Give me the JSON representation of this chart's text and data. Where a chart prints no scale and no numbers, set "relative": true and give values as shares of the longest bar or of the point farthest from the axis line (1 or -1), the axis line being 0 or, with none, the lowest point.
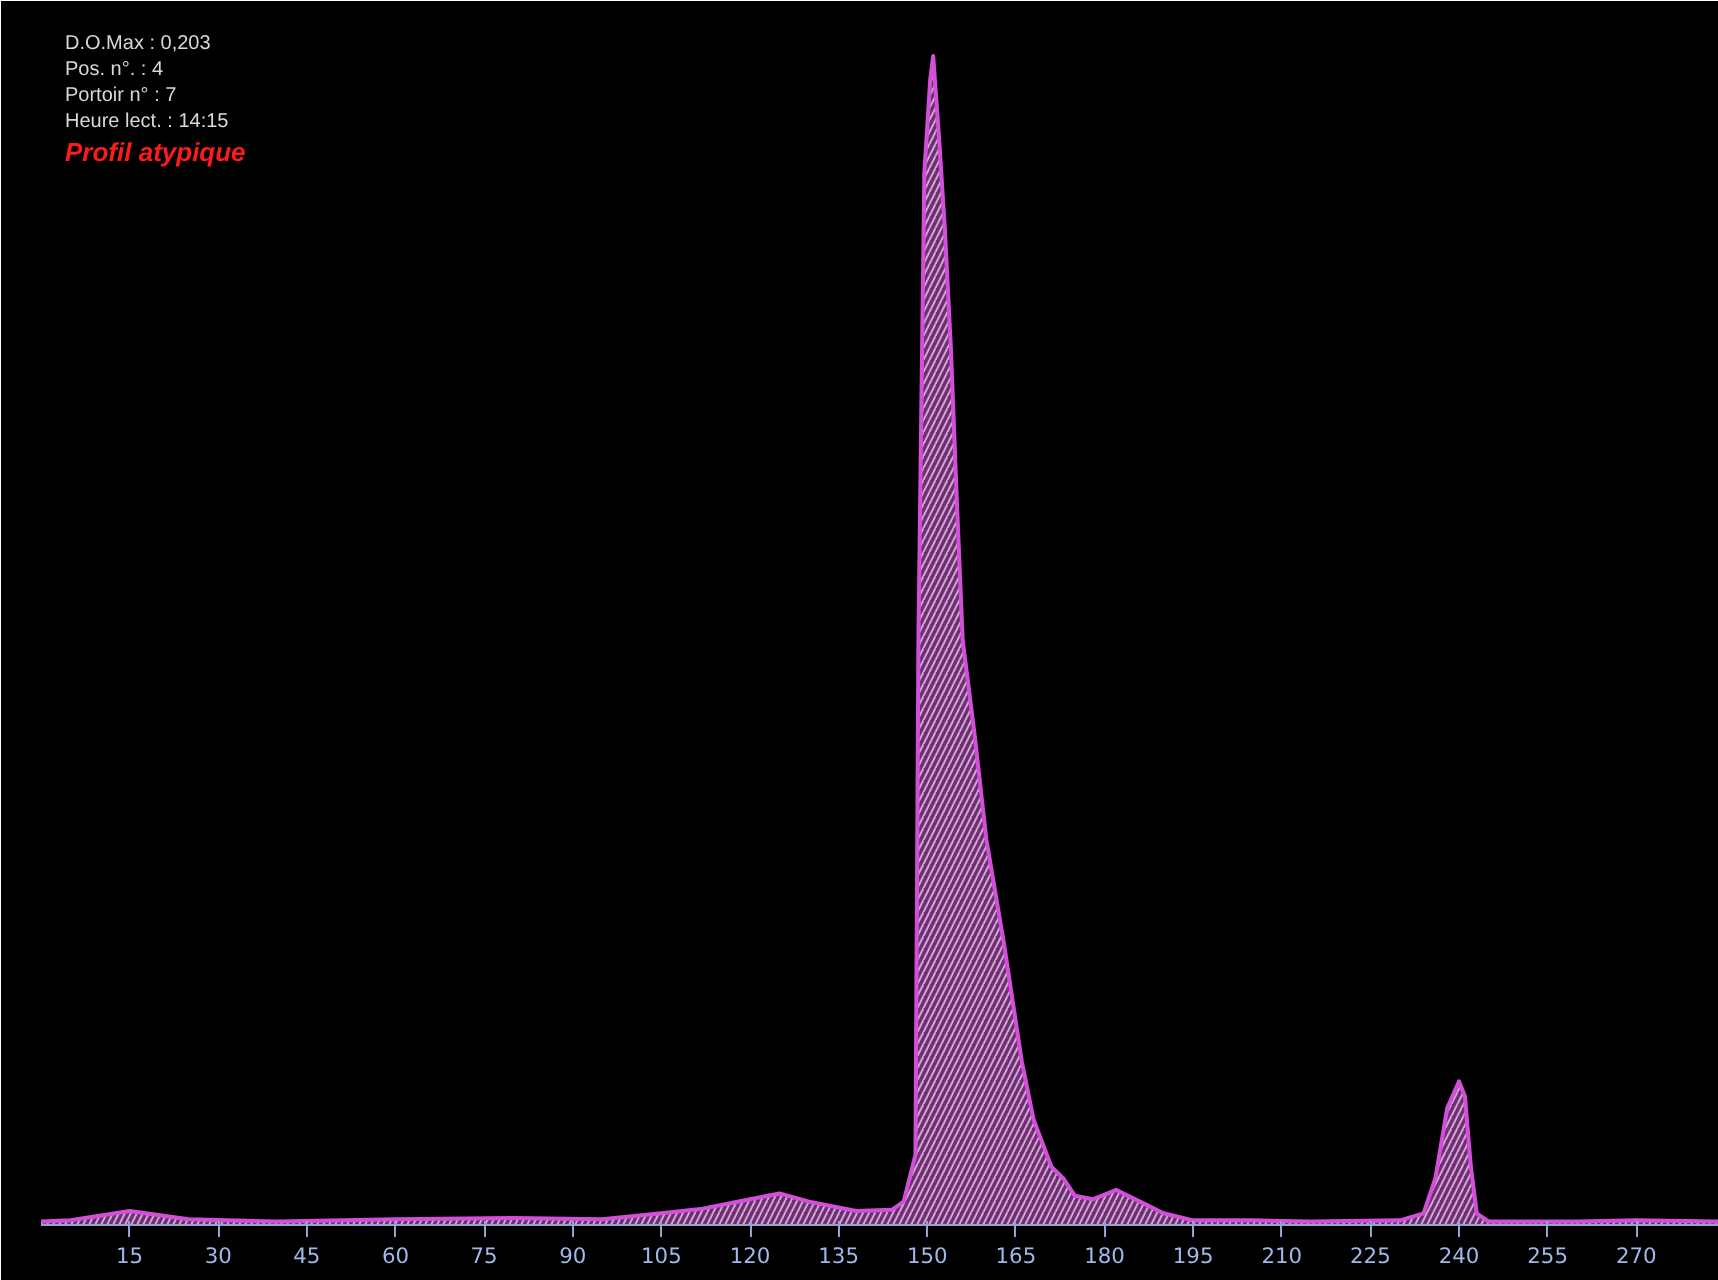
{
  "chart_data": {
    "type": "area",
    "relative": true,
    "annotations": [
      "D.O.Max : 0,203",
      "Pos. n°. : 4",
      "Portoir n° : 7",
      "Heure lect. : 14:15",
      "Profil atypique"
    ],
    "xlim": [
      0,
      284
    ],
    "xticks": [
      15,
      30,
      45,
      60,
      75,
      90,
      105,
      120,
      135,
      150,
      165,
      180,
      195,
      210,
      225,
      240,
      255,
      270
    ],
    "grid": false,
    "series": [
      {
        "color": "#d24fd8",
        "x": [
          0,
          5,
          15,
          25,
          40,
          60,
          80,
          95,
          105,
          112,
          120,
          125,
          130,
          138,
          144,
          146,
          148,
          148.5,
          149.5,
          150.5,
          151,
          152,
          153,
          154,
          155,
          156,
          158,
          160,
          163,
          166,
          168,
          171,
          173,
          175,
          178,
          182,
          186,
          190,
          195,
          205,
          215,
          230,
          234,
          236,
          238,
          240,
          241,
          242,
          243,
          245,
          260,
          270,
          284
        ],
        "values": [
          0.003,
          0.004,
          0.012,
          0.005,
          0.003,
          0.005,
          0.006,
          0.005,
          0.01,
          0.014,
          0.022,
          0.027,
          0.02,
          0.012,
          0.013,
          0.02,
          0.06,
          0.5,
          0.9,
          0.98,
          1,
          0.93,
          0.85,
          0.75,
          0.62,
          0.5,
          0.42,
          0.33,
          0.24,
          0.14,
          0.09,
          0.05,
          0.04,
          0.025,
          0.022,
          0.03,
          0.02,
          0.01,
          0.004,
          0.004,
          0.003,
          0.004,
          0.01,
          0.04,
          0.1,
          0.123,
          0.11,
          0.05,
          0.01,
          0.003,
          0.003,
          0.004,
          0.003
        ]
      }
    ]
  }
}
